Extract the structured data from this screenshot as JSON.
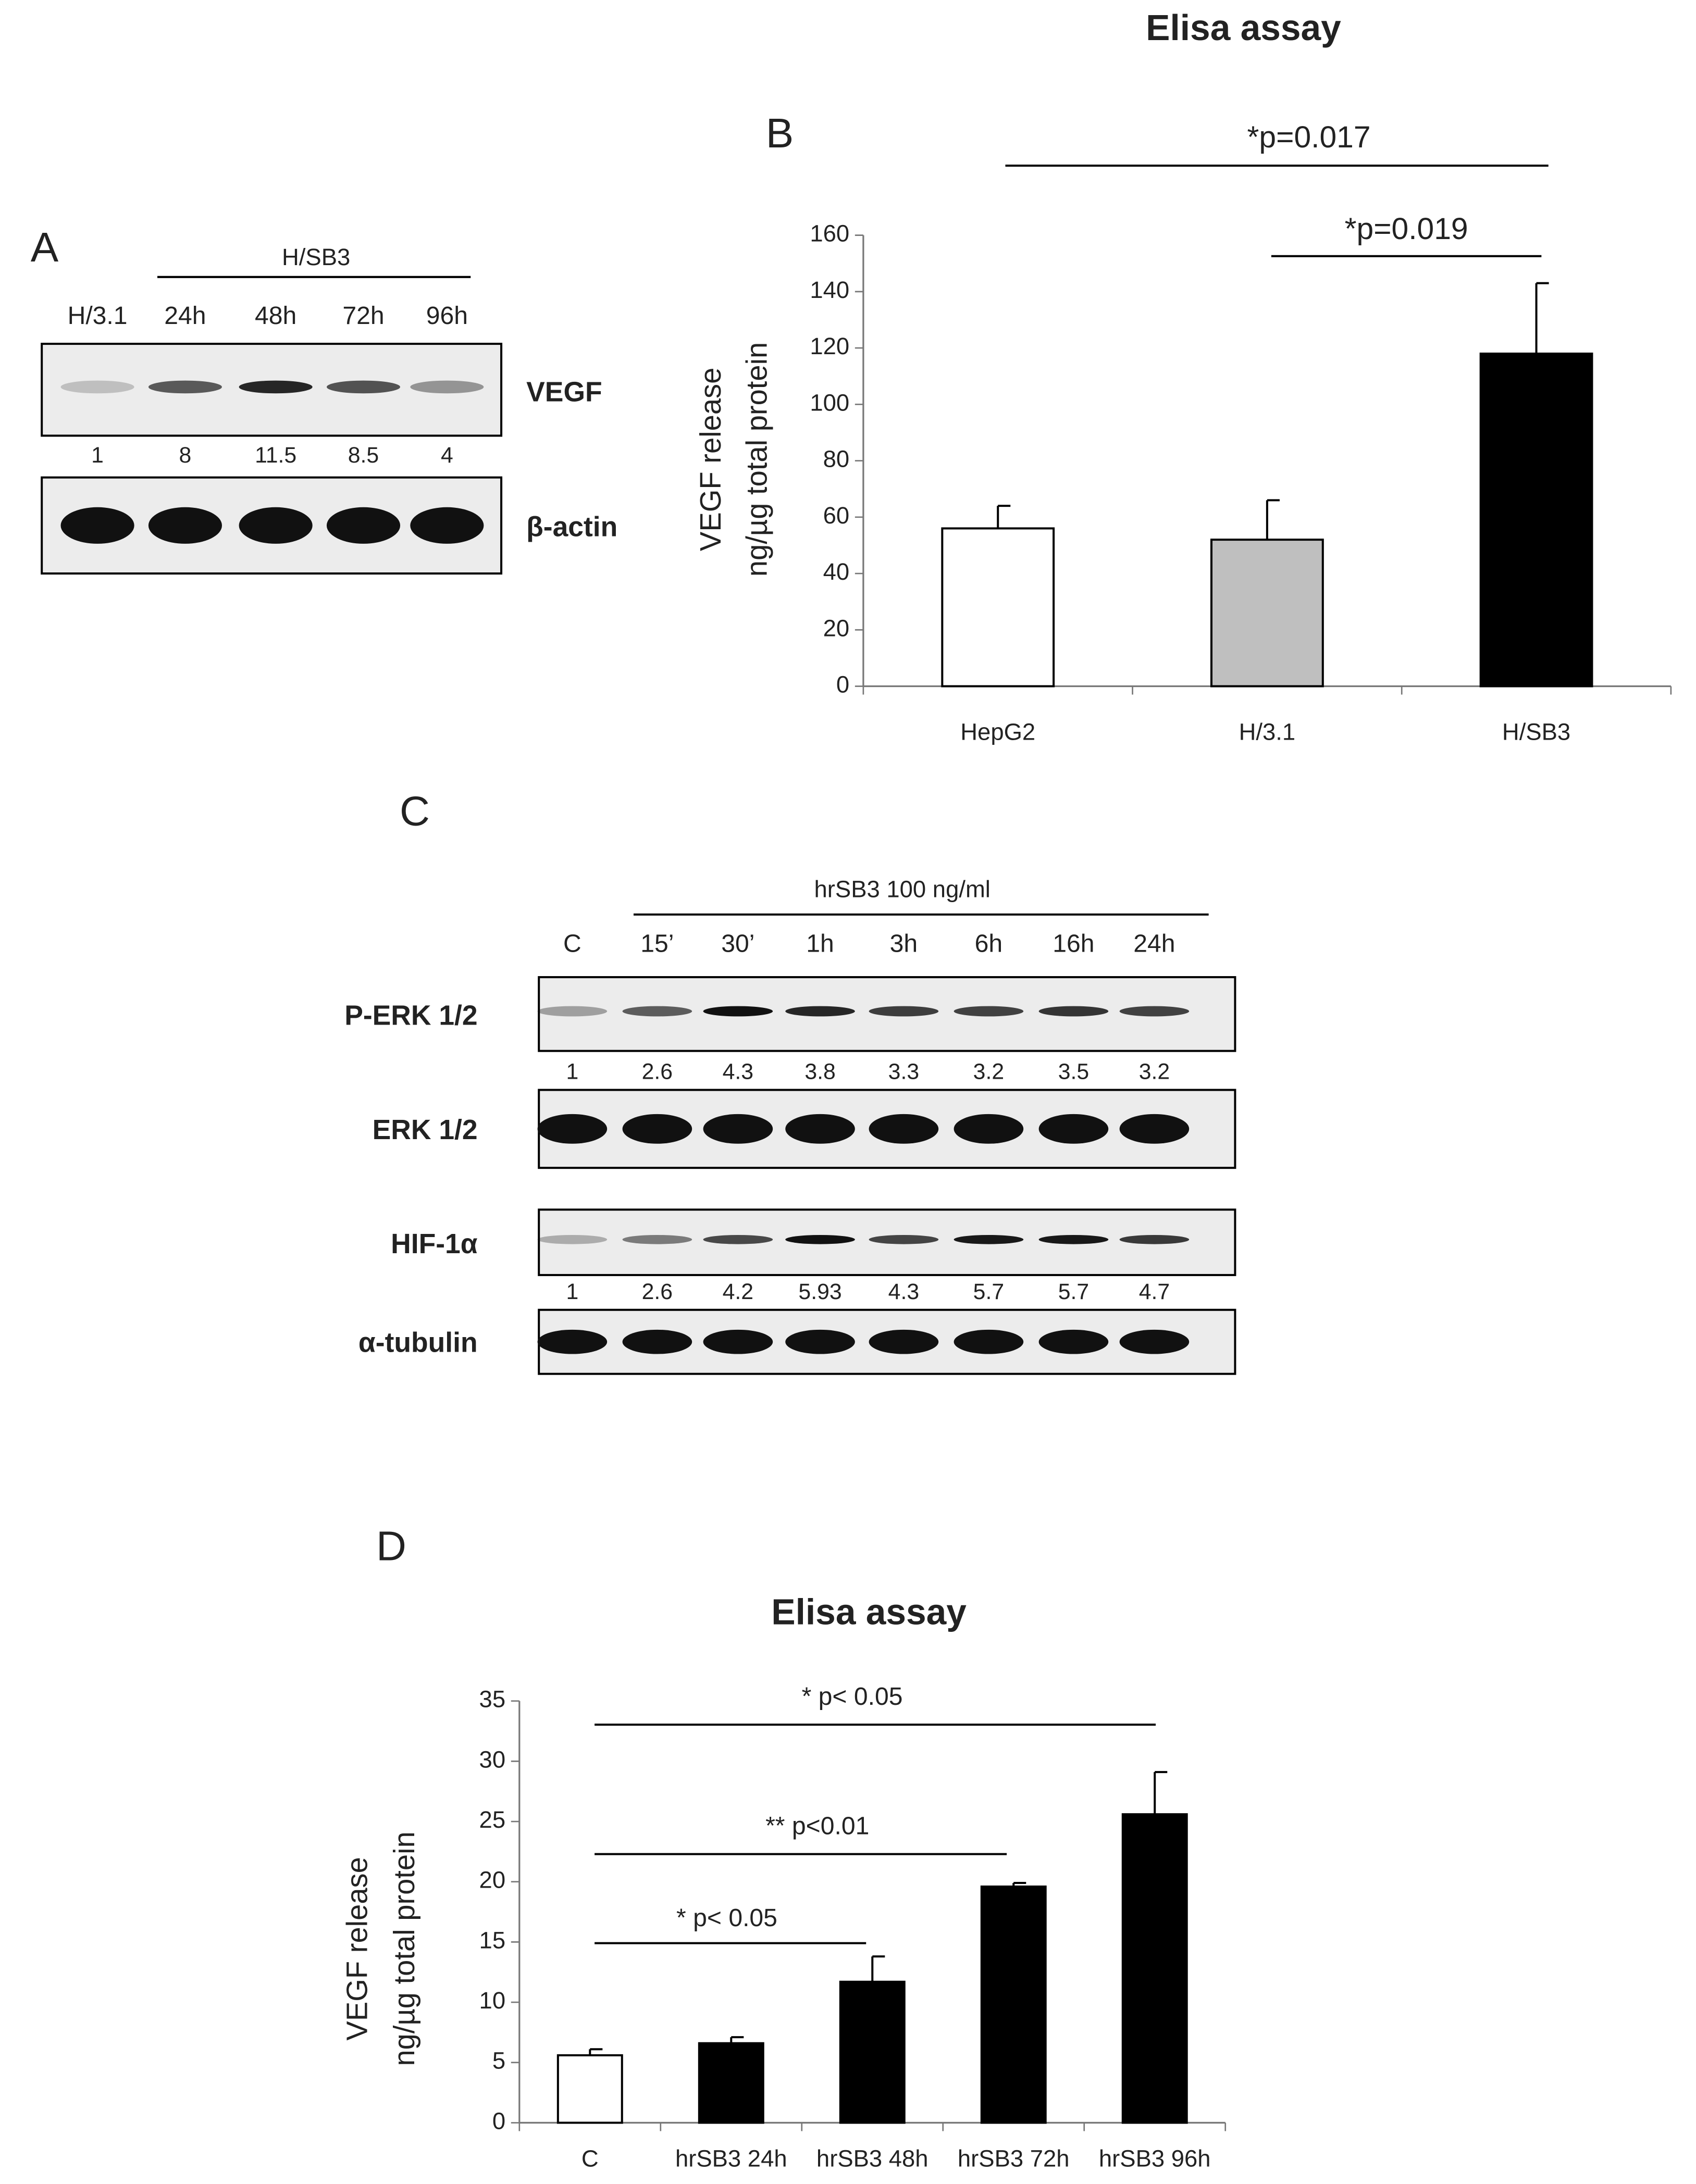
{
  "panel_a": {
    "label": "A",
    "group": "H/SB3",
    "lanes": [
      "H/3.1",
      "24h",
      "48h",
      "72h",
      "96h"
    ],
    "blots": [
      {
        "name": "VEGF",
        "quant": [
          1,
          8,
          11.5,
          8.5,
          4
        ]
      },
      {
        "name": "β-actin"
      }
    ]
  },
  "panel_c": {
    "label": "C",
    "group": "hrSB3 100 ng/ml",
    "lanes": [
      "C",
      "15’",
      "30’",
      "1h",
      "3h",
      "6h",
      "16h",
      "24h"
    ],
    "blots": [
      {
        "name": "P-ERK 1/2",
        "quant": [
          1,
          2.6,
          4.3,
          3.8,
          3.3,
          3.2,
          3.5,
          3.2
        ]
      },
      {
        "name": "ERK 1/2"
      },
      {
        "name": "HIF-1α",
        "quant": [
          1,
          2.6,
          4.2,
          5.93,
          4.3,
          5.7,
          5.7,
          4.7
        ]
      },
      {
        "name": "α-tubulin"
      }
    ]
  },
  "chart_data": [
    {
      "type": "bar",
      "panel": "B",
      "title": "Elisa assay",
      "ylabel": [
        "VEGF release",
        "ng/µg total protein"
      ],
      "categories": [
        "HepG2",
        "H/3.1",
        "H/SB3"
      ],
      "values": [
        56,
        52,
        118
      ],
      "errors": [
        8,
        14,
        25
      ],
      "colors": [
        "#ffffff",
        "#bfbfbf",
        "#000000"
      ],
      "ylim": [
        0,
        160
      ],
      "yticks": [
        0,
        20,
        40,
        60,
        80,
        100,
        120,
        140,
        160
      ],
      "annotations": [
        "*p=0.017",
        "*p=0.019"
      ]
    },
    {
      "type": "bar",
      "panel": "D",
      "title": "Elisa assay",
      "ylabel": [
        "VEGF release",
        "ng/µg total protein"
      ],
      "categories": [
        "C",
        "hrSB3 24h",
        "hrSB3 48h",
        "hrSB3 72h",
        "hrSB3 96h"
      ],
      "values": [
        5.6,
        6.6,
        11.7,
        19.6,
        25.6
      ],
      "errors": [
        0.5,
        0.5,
        2.1,
        0.3,
        3.5
      ],
      "colors": [
        "#ffffff",
        "#000000",
        "#000000",
        "#000000",
        "#000000"
      ],
      "ylim": [
        0,
        35
      ],
      "yticks": [
        0,
        5,
        10,
        15,
        20,
        25,
        30,
        35
      ],
      "annotations": [
        "* p< 0.05",
        "** p<0.01",
        "* p< 0.05"
      ]
    }
  ]
}
